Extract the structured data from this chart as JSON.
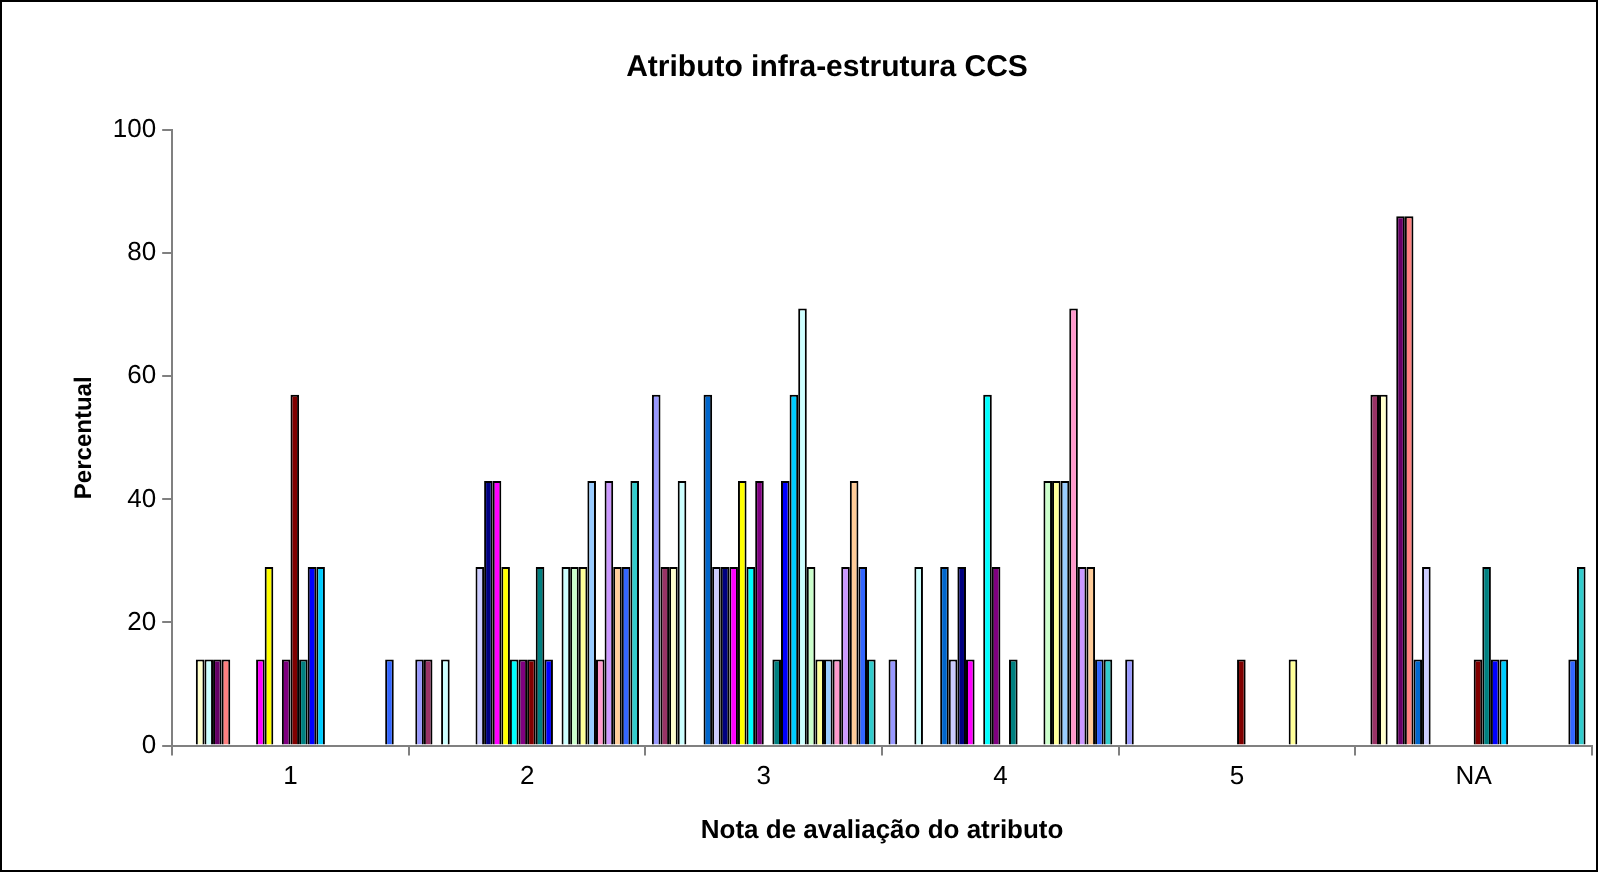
{
  "chart_data": {
    "type": "bar",
    "title": "Atributo infra-estrutura CCS",
    "xlabel": "Nota de avaliação do atributo",
    "ylabel": "Percentual",
    "categories": [
      "1",
      "2",
      "3",
      "4",
      "5",
      "NA"
    ],
    "ylim": [
      0,
      100
    ],
    "yticks": [
      0,
      20,
      40,
      60,
      80,
      100
    ],
    "grid": false,
    "legend": false,
    "series": [
      {
        "color": "#9999ff",
        "values": [
          0,
          14,
          57,
          14,
          14,
          0
        ]
      },
      {
        "color": "#993366",
        "values": [
          0,
          14,
          29,
          0,
          0,
          57
        ]
      },
      {
        "color": "#ffffcc",
        "values": [
          14,
          0,
          29,
          0,
          0,
          57
        ]
      },
      {
        "color": "#ccffff",
        "values": [
          14,
          14,
          43,
          29,
          0,
          0
        ]
      },
      {
        "color": "#660066",
        "values": [
          14,
          0,
          0,
          0,
          0,
          86
        ]
      },
      {
        "color": "#ff8080",
        "values": [
          14,
          0,
          0,
          0,
          0,
          86
        ]
      },
      {
        "color": "#0066cc",
        "values": [
          0,
          0,
          57,
          29,
          0,
          14
        ]
      },
      {
        "color": "#ccccff",
        "values": [
          0,
          29,
          29,
          14,
          0,
          29
        ]
      },
      {
        "color": "#000080",
        "values": [
          0,
          43,
          29,
          29,
          0,
          0
        ]
      },
      {
        "color": "#ff00ff",
        "values": [
          14,
          43,
          29,
          14,
          0,
          0
        ]
      },
      {
        "color": "#ffff00",
        "values": [
          29,
          29,
          43,
          0,
          0,
          0
        ]
      },
      {
        "color": "#00ffff",
        "values": [
          0,
          14,
          29,
          57,
          0,
          0
        ]
      },
      {
        "color": "#800080",
        "values": [
          14,
          14,
          43,
          29,
          0,
          0
        ]
      },
      {
        "color": "#800000",
        "values": [
          57,
          14,
          0,
          0,
          14,
          14
        ]
      },
      {
        "color": "#008080",
        "values": [
          14,
          29,
          14,
          14,
          0,
          29
        ]
      },
      {
        "color": "#0000ff",
        "values": [
          29,
          14,
          43,
          0,
          0,
          14
        ]
      },
      {
        "color": "#00ccff",
        "values": [
          29,
          0,
          57,
          0,
          0,
          14
        ]
      },
      {
        "color": "#ccffff",
        "values": [
          0,
          29,
          71,
          0,
          0,
          0
        ]
      },
      {
        "color": "#ccffcc",
        "values": [
          0,
          29,
          29,
          43,
          0,
          0
        ]
      },
      {
        "color": "#ffff99",
        "values": [
          0,
          29,
          14,
          43,
          14,
          0
        ]
      },
      {
        "color": "#99ccff",
        "values": [
          0,
          43,
          14,
          43,
          0,
          0
        ]
      },
      {
        "color": "#ff99cc",
        "values": [
          0,
          14,
          14,
          71,
          0,
          0
        ]
      },
      {
        "color": "#cc99ff",
        "values": [
          0,
          43,
          29,
          29,
          0,
          0
        ]
      },
      {
        "color": "#ffcc99",
        "values": [
          0,
          29,
          43,
          29,
          0,
          0
        ]
      },
      {
        "color": "#3366ff",
        "values": [
          14,
          29,
          29,
          14,
          0,
          14
        ]
      },
      {
        "color": "#33cccc",
        "values": [
          0,
          43,
          14,
          14,
          0,
          29
        ]
      }
    ]
  }
}
